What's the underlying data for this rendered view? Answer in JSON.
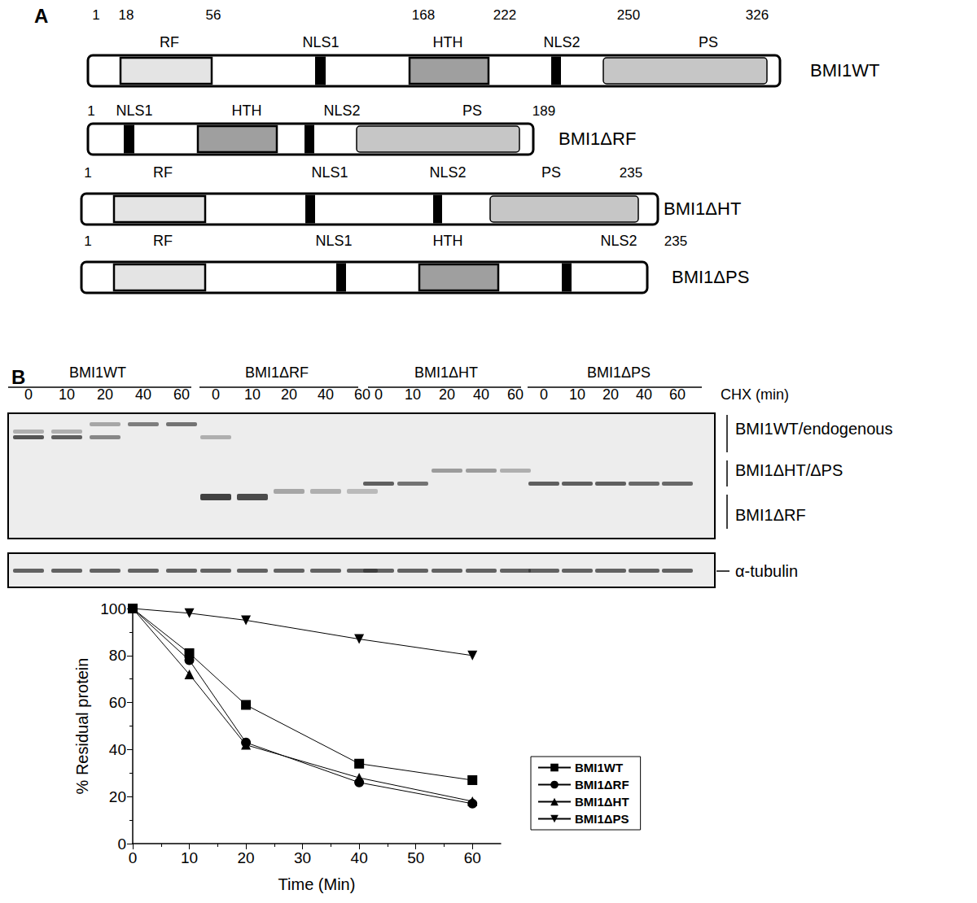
{
  "panel_a": {
    "label": "A",
    "constructs": [
      {
        "name": "BMI1WT",
        "numbers": [
          1,
          18,
          56,
          168,
          222,
          250,
          326
        ],
        "domains": [
          "RF",
          "NLS1",
          "HTH",
          "NLS2",
          "PS"
        ]
      },
      {
        "name": "BMI1ΔRF",
        "numbers": [
          1,
          189
        ],
        "domains": [
          "NLS1",
          "HTH",
          "NLS2",
          "PS"
        ]
      },
      {
        "name": "BMI1ΔHT",
        "numbers": [
          1,
          235
        ],
        "domains": [
          "RF",
          "NLS1",
          "NLS2",
          "PS"
        ]
      },
      {
        "name": "BMI1ΔPS",
        "numbers": [
          1,
          235
        ],
        "domains": [
          "RF",
          "NLS1",
          "HTH",
          "NLS2"
        ]
      }
    ]
  },
  "panel_b": {
    "label": "B",
    "groups": [
      "BMI1WT",
      "BMI1ΔRF",
      "BMI1ΔHT",
      "BMI1ΔPS"
    ],
    "lanes": [
      0,
      10,
      20,
      40,
      60
    ],
    "lanes_title": "CHX (min)",
    "band_labels": [
      "BMI1WT/endogenous",
      "BMI1ΔHT/ΔPS",
      "BMI1ΔRF"
    ],
    "loading_control": "α-tubulin"
  },
  "chart_data": {
    "type": "line",
    "x_label": "Time (Min)",
    "y_label": "% Residual protein",
    "xlim": [
      0,
      65
    ],
    "xticks": [
      0,
      10,
      20,
      30,
      40,
      50,
      60
    ],
    "ylim": [
      0,
      100
    ],
    "yticks": [
      0,
      20,
      40,
      60,
      80,
      100
    ],
    "grid": false,
    "legend": "right",
    "x": [
      0,
      10,
      20,
      40,
      60
    ],
    "series": [
      {
        "name": "BMI1WT",
        "color": "#000000",
        "marker": "square",
        "values": [
          100,
          81,
          59,
          34,
          27
        ]
      },
      {
        "name": "BMI1ΔRF",
        "color": "#000000",
        "marker": "circle",
        "values": [
          100,
          78,
          43,
          26,
          17
        ]
      },
      {
        "name": "BMI1ΔHT",
        "color": "#000000",
        "marker": "triangle-up",
        "values": [
          100,
          72,
          42,
          28,
          18
        ]
      },
      {
        "name": "BMI1ΔPS",
        "color": "#000000",
        "marker": "triangle-down",
        "values": [
          100,
          98,
          95,
          87,
          80
        ]
      }
    ]
  }
}
